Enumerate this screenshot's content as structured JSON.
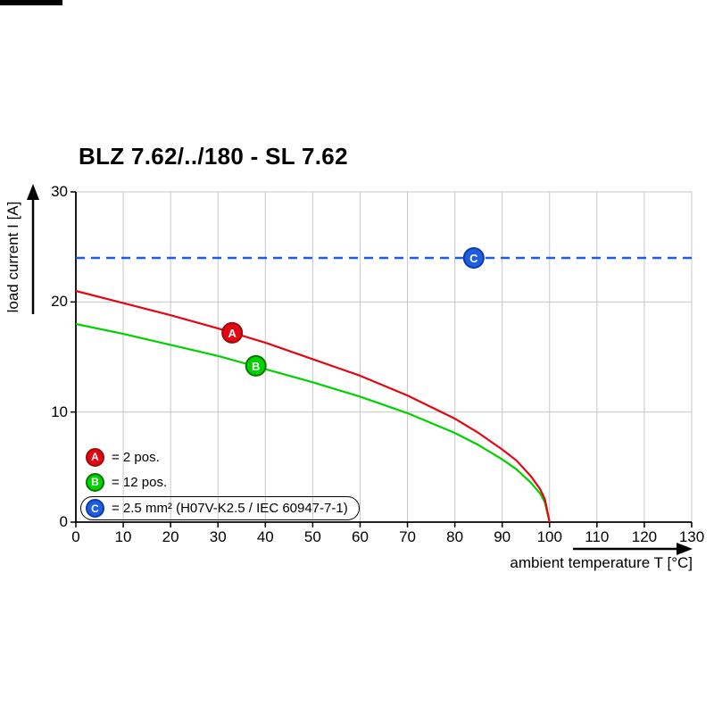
{
  "page": {
    "title": "BLZ 7.62/../180 - SL 7.62"
  },
  "axes": {
    "ylabel": "load current I [A]",
    "xlabel": "ambient temperature T [°C]"
  },
  "legend": [
    {
      "marker": "A",
      "label": "= 2 pos.",
      "color": "#e30613",
      "edge": "#9c0a0a"
    },
    {
      "marker": "B",
      "label": "= 12 pos.",
      "color": "#00d200",
      "edge": "#067800"
    },
    {
      "marker": "C",
      "label": "= 2.5 mm² (H07V-K2.5 / IEC 60947-7-1)",
      "color": "#1d5de2",
      "edge": "#0f3ba8"
    }
  ],
  "chart_data": {
    "type": "line",
    "title": "BLZ 7.62/../180 - SL 7.62",
    "xlabel": "ambient temperature T [°C]",
    "ylabel": "load current I [A]",
    "xlim": [
      0,
      130
    ],
    "ylim": [
      0,
      30
    ],
    "xticks": [
      0,
      10,
      20,
      30,
      40,
      50,
      60,
      70,
      80,
      90,
      100,
      110,
      120,
      130
    ],
    "yticks": [
      0,
      10,
      20,
      30
    ],
    "grid": true,
    "grid_color": "#c7c7c7",
    "series": [
      {
        "name": "A",
        "label": "2 pos.",
        "color": "#e30613",
        "edge": "#9c0a0a",
        "dash": false,
        "x": [
          0,
          10,
          20,
          30,
          40,
          50,
          60,
          70,
          80,
          85,
          90,
          93,
          96,
          98,
          99,
          100
        ],
        "y": [
          21,
          19.9,
          18.8,
          17.6,
          16.3,
          14.8,
          13.3,
          11.5,
          9.4,
          8.1,
          6.6,
          5.6,
          4.2,
          3.0,
          2.1,
          0
        ],
        "marker_at": {
          "x": 33,
          "y": 17.2
        }
      },
      {
        "name": "B",
        "label": "12 pos.",
        "color": "#00d200",
        "edge": "#067800",
        "dash": false,
        "x": [
          0,
          10,
          20,
          30,
          40,
          50,
          60,
          70,
          80,
          85,
          90,
          93,
          96,
          98,
          99,
          100
        ],
        "y": [
          18,
          17.1,
          16.1,
          15.1,
          13.9,
          12.7,
          11.4,
          9.9,
          8.1,
          7.0,
          5.7,
          4.8,
          3.6,
          2.6,
          1.8,
          0
        ],
        "marker_at": {
          "x": 38,
          "y": 14.2
        }
      },
      {
        "name": "C",
        "label": "2.5 mm² (H07V-K2.5 / IEC 60947-7-1)",
        "color": "#1d5de2",
        "edge": "#0f3ba8",
        "dash": true,
        "x": [
          0,
          130
        ],
        "y": [
          24,
          24
        ],
        "marker_at": {
          "x": 84,
          "y": 24
        }
      }
    ]
  }
}
